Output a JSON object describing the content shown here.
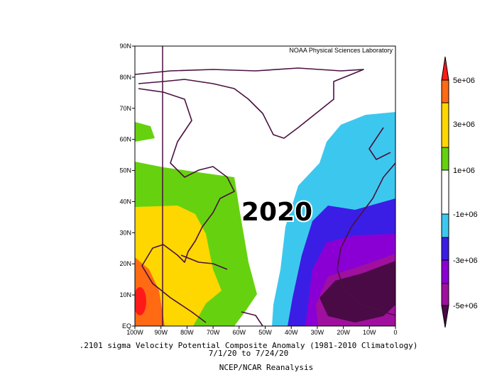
{
  "header": {
    "credit": "NOAA Physical Sciences Laboratory"
  },
  "map": {
    "annotation": "2020",
    "lat_labels": [
      "EQ",
      "10N",
      "20N",
      "30N",
      "40N",
      "50N",
      "60N",
      "70N",
      "80N",
      "90N"
    ],
    "lon_labels": [
      "100W",
      "90W",
      "80W",
      "70W",
      "60W",
      "50W",
      "40W",
      "30W",
      "20W",
      "10W",
      "0"
    ]
  },
  "colorbar": {
    "labels": [
      "5e+06",
      "3e+06",
      "1e+06",
      "-1e+06",
      "-3e+06",
      "-5e+06"
    ]
  },
  "footer": {
    "line1": ".2101 sigma Velocity Potential  Composite Anomaly (1981-2010 Climatology)",
    "line2": "7/1/20  to 7/24/20",
    "line3": "NCEP/NCAR Reanalysis"
  }
}
